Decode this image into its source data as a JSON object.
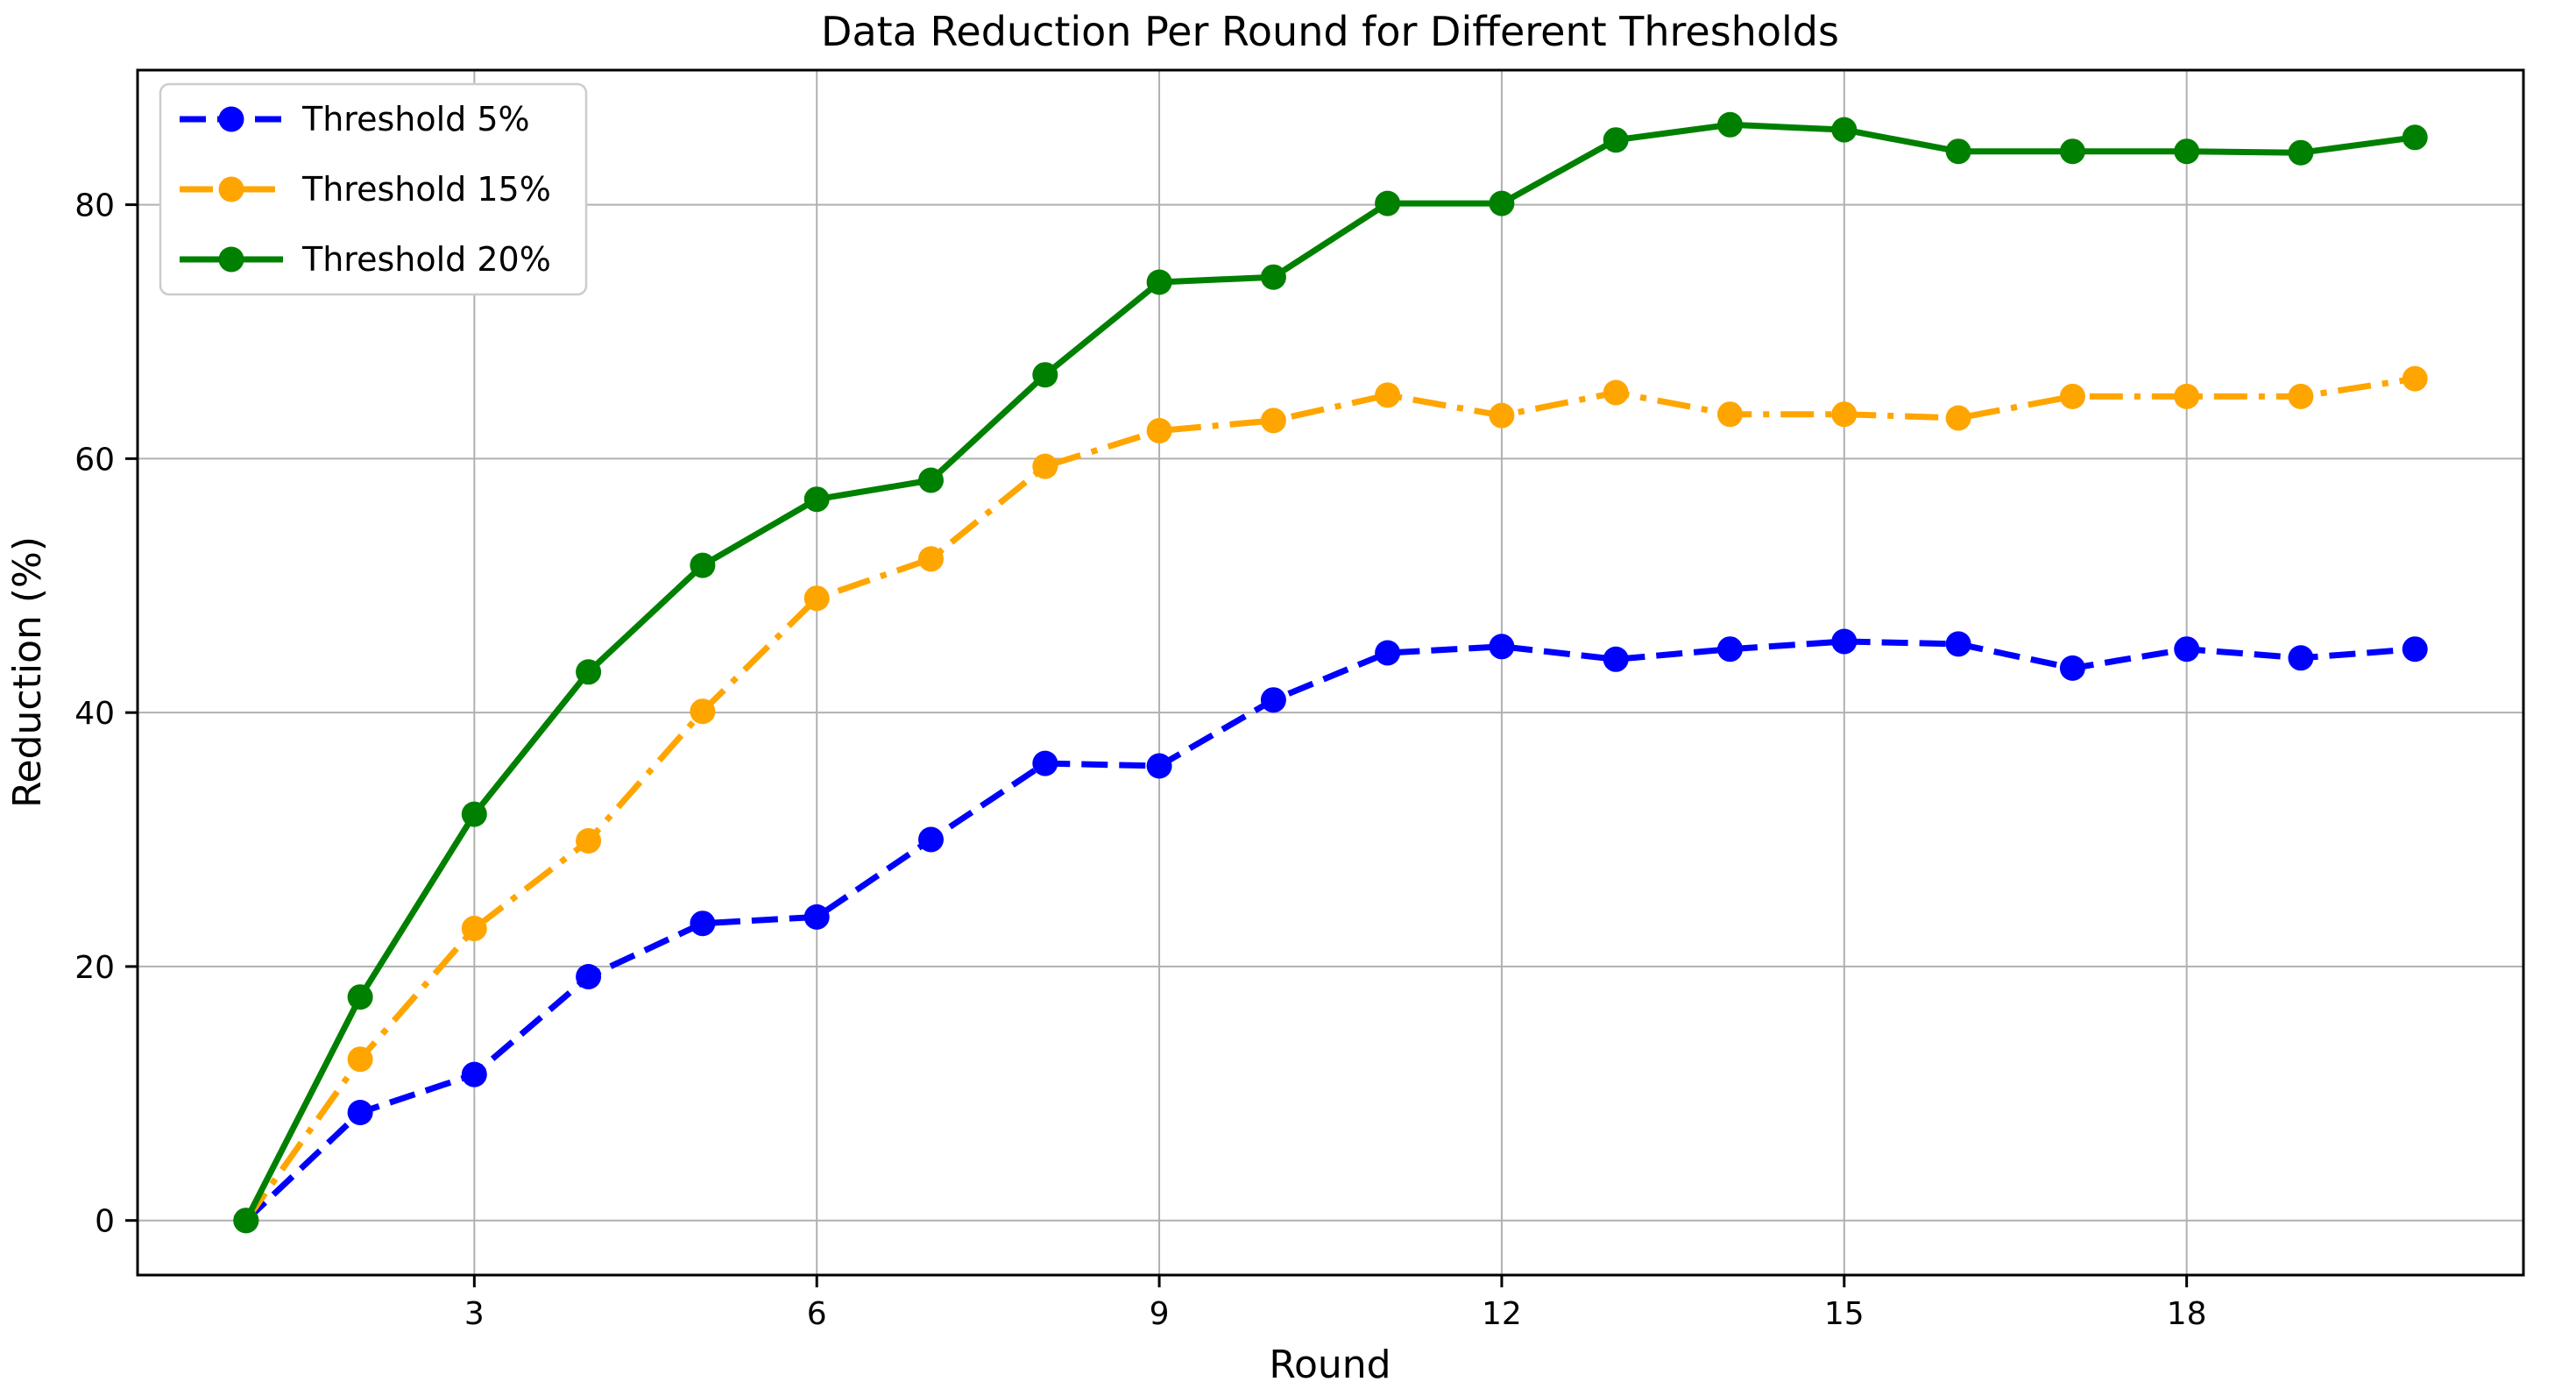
{
  "chart_data": {
    "type": "line",
    "title": "Data Reduction Per Round for Different Thresholds",
    "xlabel": "Round",
    "ylabel": "Reduction (%)",
    "x": [
      1,
      2,
      3,
      4,
      5,
      6,
      7,
      8,
      9,
      10,
      11,
      12,
      13,
      14,
      15,
      16,
      17,
      18,
      19,
      20
    ],
    "series": [
      {
        "name": "Threshold 5%",
        "color": "#0000ff",
        "linestyle": "dashed",
        "marker": "o",
        "values": [
          0,
          8.5,
          11.5,
          19.2,
          23.4,
          23.9,
          30.0,
          36.0,
          35.8,
          41.0,
          44.7,
          45.2,
          44.2,
          45.0,
          45.6,
          45.4,
          43.5,
          45.0,
          44.3,
          45.0
        ]
      },
      {
        "name": "Threshold 15%",
        "color": "#ffa500",
        "linestyle": "dashdot",
        "marker": "o",
        "values": [
          0,
          12.7,
          23.0,
          29.9,
          40.1,
          49.0,
          52.1,
          59.4,
          62.2,
          63.0,
          65.0,
          63.4,
          65.2,
          63.5,
          63.5,
          63.2,
          64.9,
          64.9,
          64.9,
          66.3
        ]
      },
      {
        "name": "Threshold 20%",
        "color": "#008000",
        "linestyle": "solid",
        "marker": "o",
        "values": [
          0,
          17.6,
          32.0,
          43.2,
          51.6,
          56.8,
          58.3,
          66.6,
          73.9,
          74.3,
          80.1,
          80.1,
          85.1,
          86.3,
          85.9,
          84.2,
          84.2,
          84.2,
          84.1,
          85.3
        ]
      }
    ],
    "xticks": [
      3,
      6,
      9,
      12,
      15,
      18
    ],
    "yticks": [
      0,
      20,
      40,
      60,
      80
    ],
    "xlim": [
      0.05,
      20.95
    ],
    "ylim": [
      -4.3,
      90.6
    ],
    "grid": true,
    "legend_position": "upper left",
    "grid_color": "#b0b0b0",
    "spine_color": "#000000",
    "text_color": "#000000",
    "background": "#ffffff"
  }
}
